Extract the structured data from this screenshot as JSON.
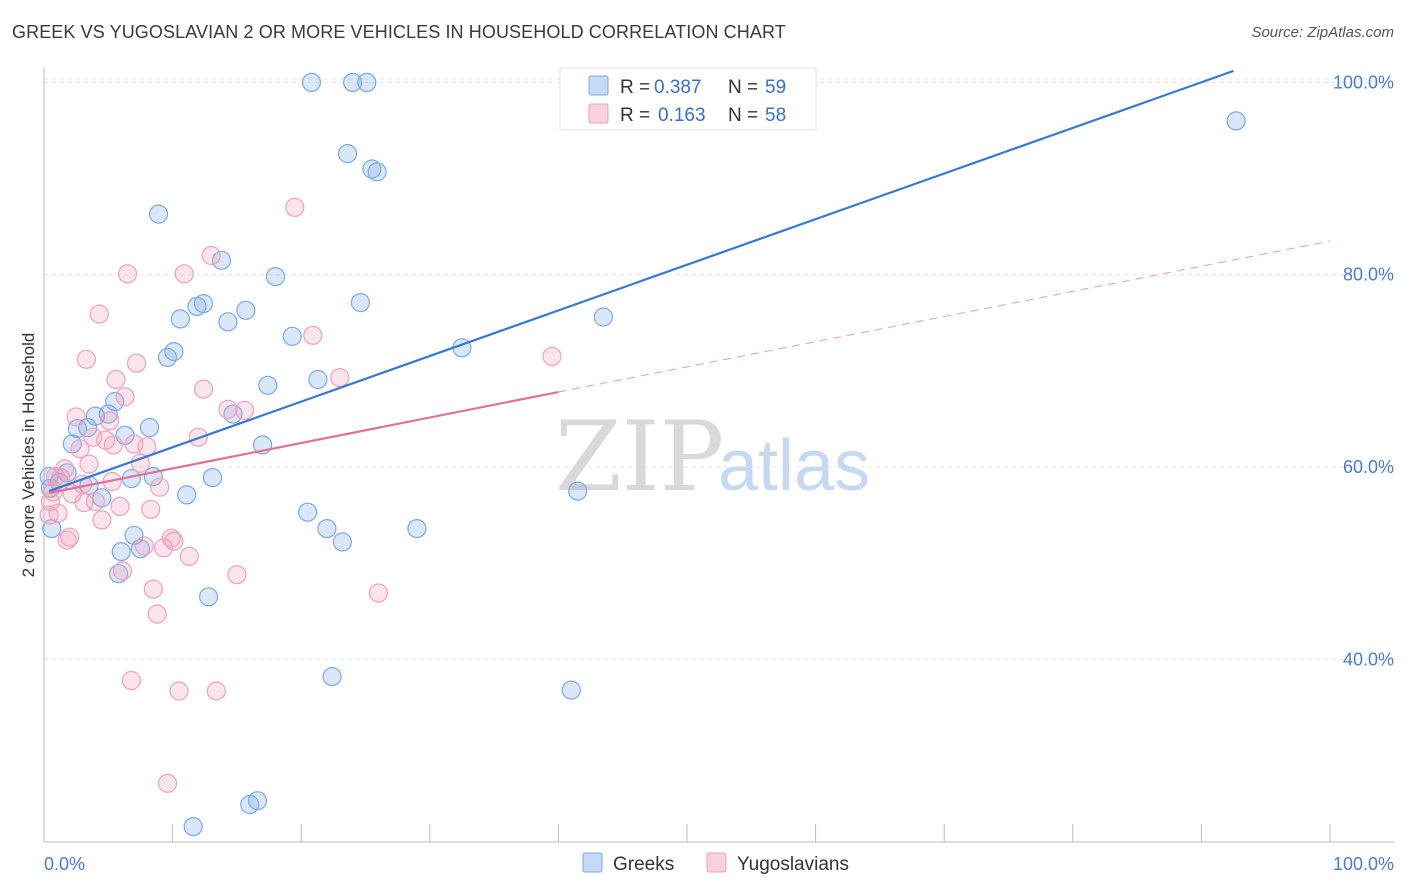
{
  "title": "GREEK VS YUGOSLAVIAN 2 OR MORE VEHICLES IN HOUSEHOLD CORRELATION CHART",
  "source": "Source: ZipAtlas.com",
  "watermark": {
    "part1": "ZIP",
    "part2": "atlas"
  },
  "legend": {
    "r_label": "R =",
    "n_label": "N =",
    "rows": [
      {
        "series": "Greeks",
        "r": "0.387",
        "n": "59",
        "color": "#7aaae6"
      },
      {
        "series": "Yugoslavians",
        "r": "0.163",
        "n": "58",
        "color": "#f0a0ba"
      }
    ]
  },
  "chart_data": {
    "type": "scatter",
    "title": "GREEK VS YUGOSLAVIAN 2 OR MORE VEHICLES IN HOUSEHOLD CORRELATION CHART",
    "xlabel": "",
    "ylabel": "2 or more Vehicles in Household",
    "xlim": [
      0,
      100
    ],
    "ylim": [
      21,
      101.5
    ],
    "x_tick_labels": [
      "0.0%",
      "100.0%"
    ],
    "y_ticks": [
      {
        "value": 40,
        "label": "40.0%"
      },
      {
        "value": 60,
        "label": "60.0%"
      },
      {
        "value": 80,
        "label": "80.0%"
      },
      {
        "value": 100,
        "label": "100.0%"
      }
    ],
    "grid": true,
    "legend_position": "top-center",
    "series": [
      {
        "name": "Greeks",
        "color": "#7aaae6",
        "line_color": "#3a78d0",
        "trend": {
          "x0": 0.4,
          "y0": 57.5,
          "x1": 92.5,
          "y1": 101.2,
          "dashed_extension": false
        },
        "points": [
          [
            0.4,
            59.0
          ],
          [
            0.5,
            57.8
          ],
          [
            0.6,
            53.6
          ],
          [
            1.2,
            58.4
          ],
          [
            1.8,
            59.4
          ],
          [
            2.2,
            62.4
          ],
          [
            2.6,
            64.0
          ],
          [
            3.4,
            64.1
          ],
          [
            3.5,
            58.1
          ],
          [
            4.0,
            65.3
          ],
          [
            4.5,
            56.8
          ],
          [
            5.0,
            65.5
          ],
          [
            5.5,
            66.8
          ],
          [
            5.8,
            48.9
          ],
          [
            6.0,
            51.2
          ],
          [
            6.3,
            63.3
          ],
          [
            6.8,
            58.8
          ],
          [
            7.0,
            52.9
          ],
          [
            7.5,
            51.5
          ],
          [
            8.2,
            64.1
          ],
          [
            8.5,
            59.0
          ],
          [
            8.9,
            86.3
          ],
          [
            9.6,
            71.4
          ],
          [
            10.1,
            72.0
          ],
          [
            10.6,
            75.4
          ],
          [
            11.1,
            57.1
          ],
          [
            11.6,
            22.6
          ],
          [
            11.9,
            76.7
          ],
          [
            12.4,
            77.0
          ],
          [
            12.8,
            46.5
          ],
          [
            13.1,
            58.9
          ],
          [
            13.8,
            81.5
          ],
          [
            14.3,
            75.1
          ],
          [
            14.7,
            65.5
          ],
          [
            15.7,
            76.3
          ],
          [
            16.0,
            24.9
          ],
          [
            16.6,
            25.3
          ],
          [
            17.0,
            62.3
          ],
          [
            17.4,
            68.5
          ],
          [
            18.0,
            79.8
          ],
          [
            19.3,
            73.6
          ],
          [
            20.5,
            55.3
          ],
          [
            20.8,
            100.0
          ],
          [
            21.3,
            69.1
          ],
          [
            22.0,
            53.6
          ],
          [
            22.4,
            38.2
          ],
          [
            23.2,
            52.2
          ],
          [
            23.6,
            92.6
          ],
          [
            24.0,
            100.0
          ],
          [
            24.6,
            77.1
          ],
          [
            25.1,
            100.0
          ],
          [
            25.5,
            91.0
          ],
          [
            25.9,
            90.7
          ],
          [
            29.0,
            53.6
          ],
          [
            32.5,
            72.4
          ],
          [
            41.0,
            36.8
          ],
          [
            41.5,
            57.5
          ],
          [
            43.5,
            75.6
          ],
          [
            92.7,
            96.0
          ]
        ]
      },
      {
        "name": "Yugoslavians",
        "color": "#f0a0ba",
        "line_color": "#e0709a",
        "trend": {
          "x0": 0.4,
          "y0": 57.3,
          "x1": 40.0,
          "y1": 67.8,
          "dash_to_x": 100,
          "dash_to_y": 83.5
        },
        "points": [
          [
            0.4,
            55.0
          ],
          [
            0.5,
            56.4
          ],
          [
            0.7,
            57.4
          ],
          [
            0.9,
            59.0
          ],
          [
            1.1,
            55.2
          ],
          [
            1.3,
            58.9
          ],
          [
            1.6,
            59.8
          ],
          [
            1.8,
            52.4
          ],
          [
            2.0,
            52.7
          ],
          [
            2.2,
            57.2
          ],
          [
            2.5,
            65.2
          ],
          [
            2.8,
            61.9
          ],
          [
            3.0,
            58.2
          ],
          [
            3.3,
            71.2
          ],
          [
            3.5,
            60.3
          ],
          [
            3.8,
            63.1
          ],
          [
            4.0,
            56.4
          ],
          [
            4.3,
            75.9
          ],
          [
            4.5,
            54.5
          ],
          [
            4.8,
            62.8
          ],
          [
            5.1,
            64.8
          ],
          [
            5.3,
            58.5
          ],
          [
            5.6,
            69.1
          ],
          [
            5.9,
            55.9
          ],
          [
            6.1,
            49.2
          ],
          [
            6.3,
            67.3
          ],
          [
            6.5,
            80.1
          ],
          [
            6.8,
            37.8
          ],
          [
            7.0,
            62.4
          ],
          [
            7.2,
            70.8
          ],
          [
            7.5,
            60.4
          ],
          [
            7.8,
            51.8
          ],
          [
            8.0,
            62.1
          ],
          [
            8.3,
            55.6
          ],
          [
            8.5,
            47.3
          ],
          [
            8.8,
            44.7
          ],
          [
            9.0,
            57.9
          ],
          [
            9.3,
            51.6
          ],
          [
            9.6,
            27.1
          ],
          [
            9.9,
            52.6
          ],
          [
            10.1,
            52.3
          ],
          [
            10.5,
            36.7
          ],
          [
            10.9,
            80.1
          ],
          [
            11.3,
            50.7
          ],
          [
            12.0,
            63.1
          ],
          [
            12.4,
            68.1
          ],
          [
            13.0,
            82.0
          ],
          [
            13.4,
            36.7
          ],
          [
            14.3,
            66.0
          ],
          [
            15.0,
            48.8
          ],
          [
            15.6,
            65.9
          ],
          [
            19.5,
            87.0
          ],
          [
            20.9,
            73.7
          ],
          [
            23.0,
            69.3
          ],
          [
            26.0,
            46.9
          ],
          [
            39.5,
            71.5
          ],
          [
            5.4,
            62.3
          ],
          [
            3.1,
            56.3
          ]
        ]
      }
    ]
  },
  "bottom_legend": [
    "Greeks",
    "Yugoslavians"
  ]
}
